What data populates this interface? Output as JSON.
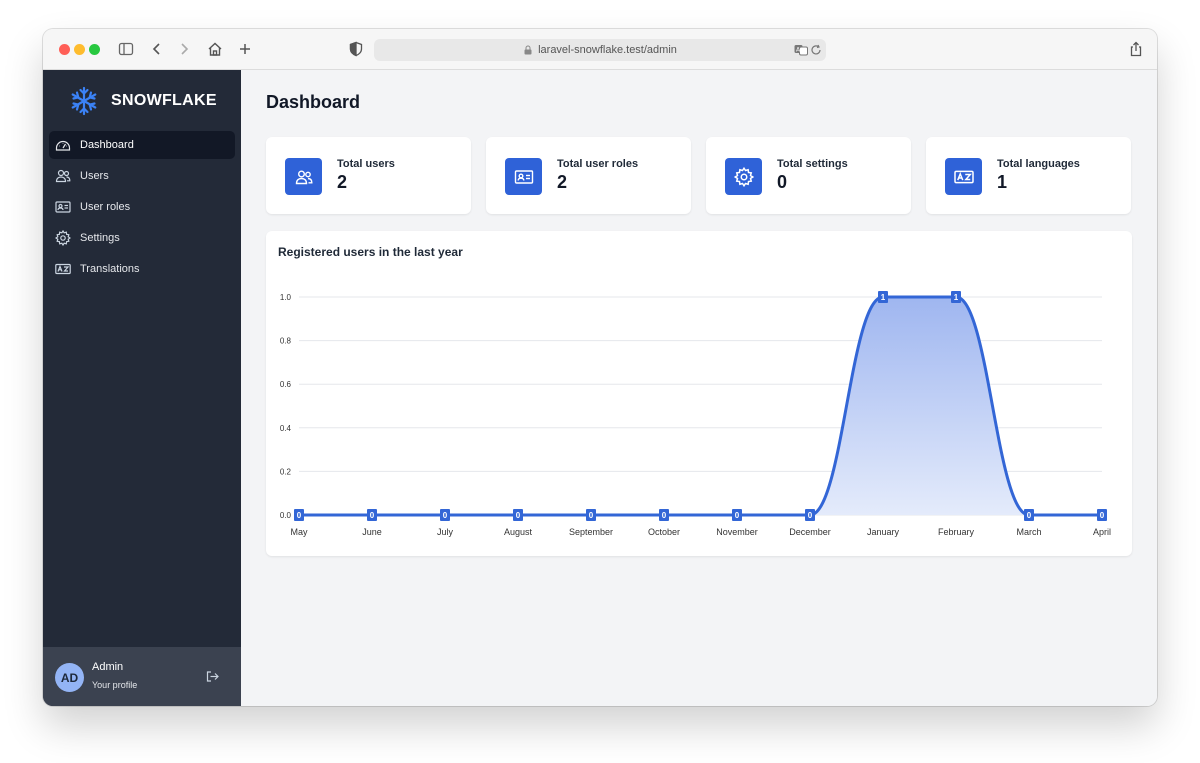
{
  "browser": {
    "url": "laravel-snowflake.test/admin"
  },
  "brand": {
    "name": "SNOWFLAKE"
  },
  "sidebar": {
    "items": [
      {
        "label": "Dashboard",
        "icon": "dashboard-icon",
        "active": true
      },
      {
        "label": "Users",
        "icon": "users-icon",
        "active": false
      },
      {
        "label": "User roles",
        "icon": "id-card-icon",
        "active": false
      },
      {
        "label": "Settings",
        "icon": "gear-icon",
        "active": false
      },
      {
        "label": "Translations",
        "icon": "language-icon",
        "active": false
      }
    ]
  },
  "profile": {
    "initials": "AD",
    "name": "Admin",
    "subtitle": "Your profile"
  },
  "page": {
    "title": "Dashboard"
  },
  "stats": [
    {
      "label": "Total users",
      "value": "2",
      "icon": "users-icon"
    },
    {
      "label": "Total user roles",
      "value": "2",
      "icon": "id-card-icon"
    },
    {
      "label": "Total settings",
      "value": "0",
      "icon": "gear-icon"
    },
    {
      "label": "Total languages",
      "value": "1",
      "icon": "language-icon"
    }
  ],
  "colors": {
    "accent": "#2f62d8",
    "sidebar": "#232a38",
    "line": "#3366d6"
  },
  "chart_data": {
    "type": "area",
    "title": "Registered users in the last year",
    "categories": [
      "May",
      "June",
      "July",
      "August",
      "September",
      "October",
      "November",
      "December",
      "January",
      "February",
      "March",
      "April"
    ],
    "values": [
      0,
      0,
      0,
      0,
      0,
      0,
      0,
      0,
      1,
      1,
      0,
      0
    ],
    "ylim": [
      0,
      1
    ],
    "yticks": [
      "0.0",
      "0.2",
      "0.4",
      "0.6",
      "0.8",
      "1.0"
    ],
    "grid": true,
    "data_labels": true
  }
}
